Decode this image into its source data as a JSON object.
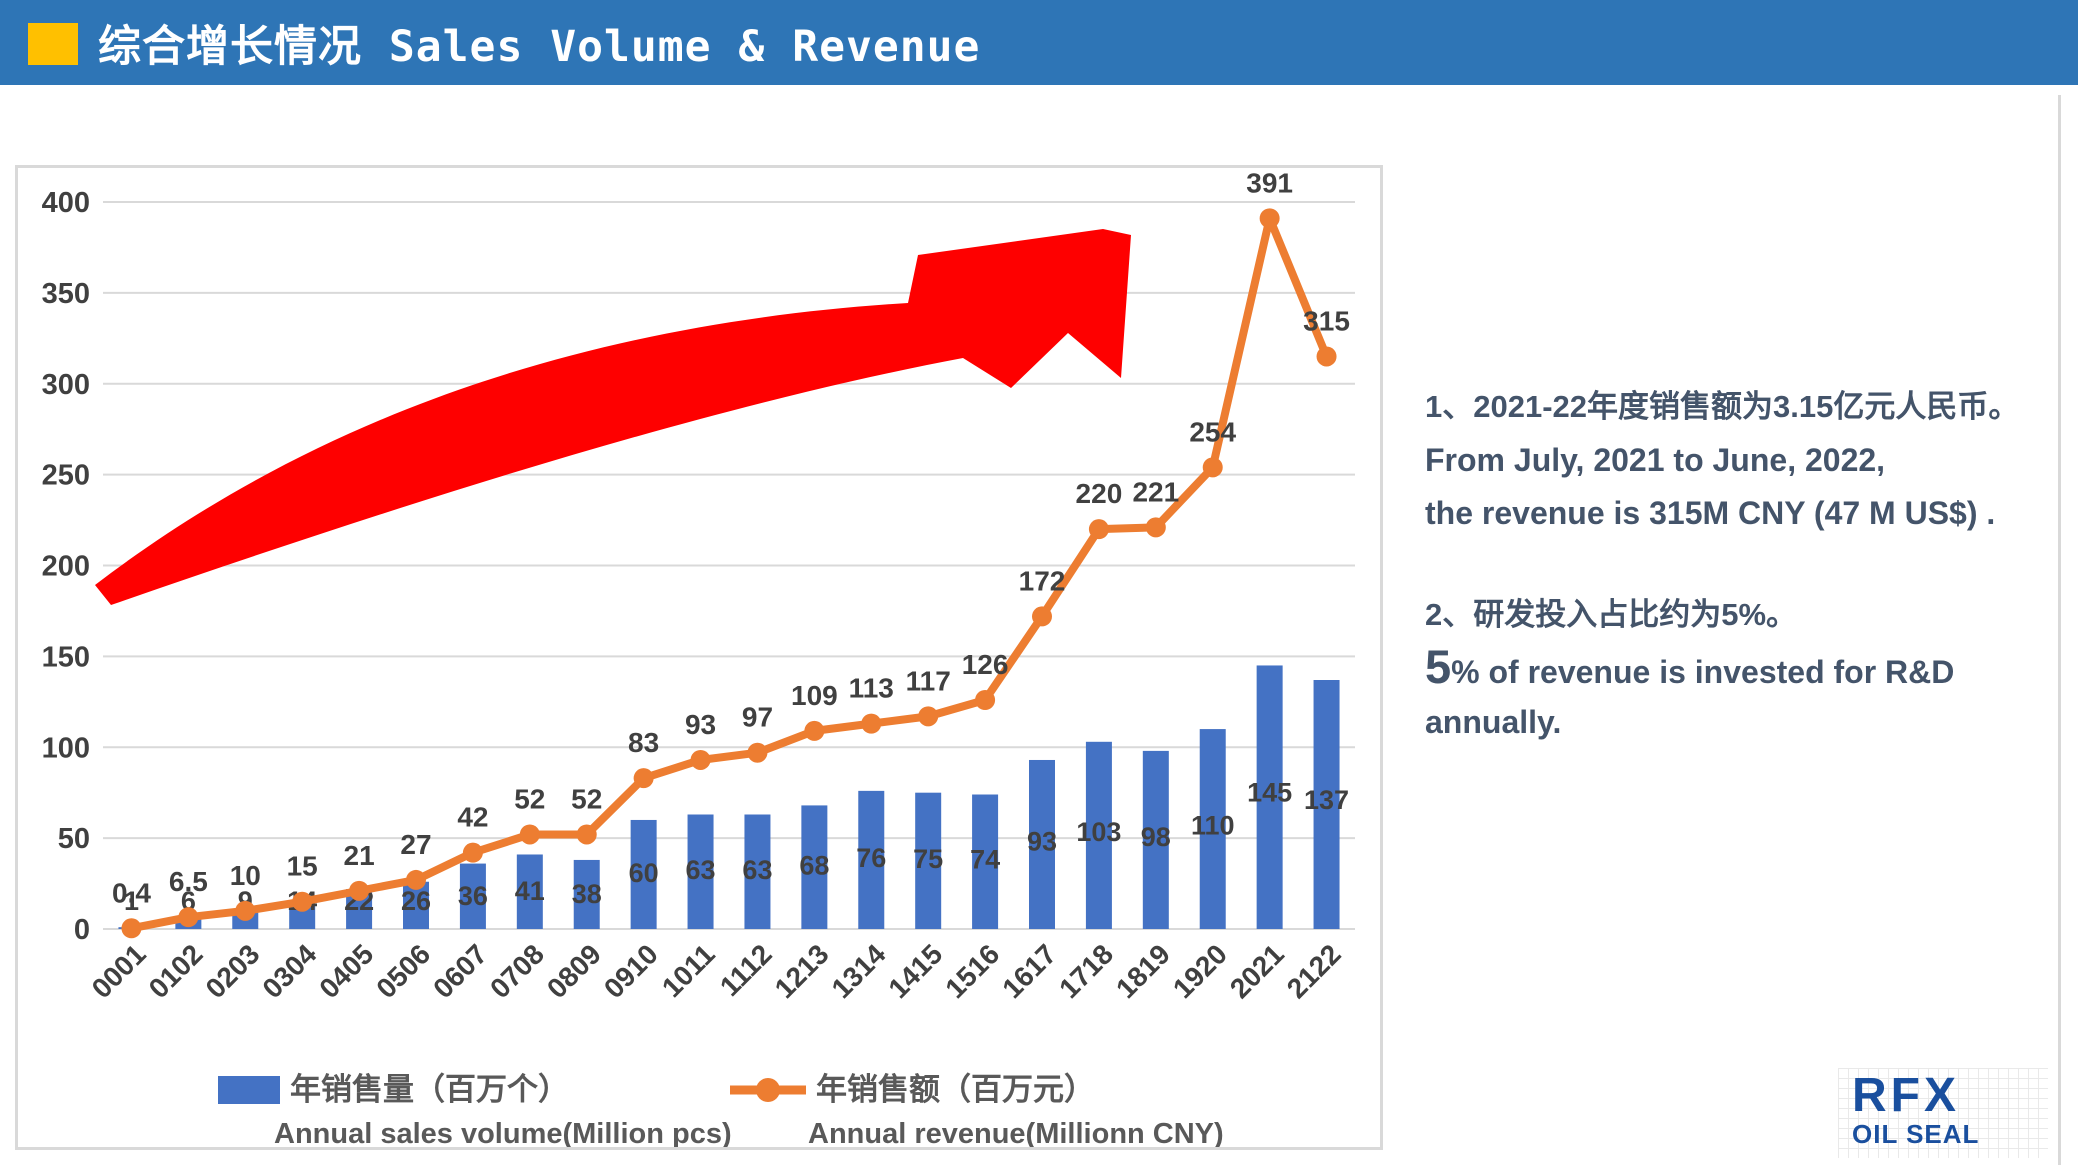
{
  "header": {
    "title": "综合增长情况 Sales Volume & Revenue",
    "bg_color": "#2E75B6",
    "accent_color": "#FFC000"
  },
  "chart_data": {
    "type": "bar+line",
    "title": "",
    "categories": [
      "0001",
      "0102",
      "0203",
      "0304",
      "0405",
      "0506",
      "0607",
      "0708",
      "0809",
      "0910",
      "1011",
      "1112",
      "1213",
      "1314",
      "1415",
      "1516",
      "1617",
      "1718",
      "1819",
      "1920",
      "2021",
      "2122"
    ],
    "series": [
      {
        "name": "年销售量（百万个）",
        "name_en": "Annual sales volume(Million pcs)",
        "type": "bar",
        "color": "#4472C4",
        "values": [
          1,
          6,
          9,
          14,
          22,
          26,
          36,
          41,
          38,
          60,
          63,
          63,
          68,
          76,
          75,
          74,
          93,
          103,
          98,
          110,
          145,
          137
        ]
      },
      {
        "name": "年销售额（百万元）",
        "name_en": "Annual revenue(Millionn CNY)",
        "type": "line",
        "color": "#ED7D31",
        "values": [
          0.4,
          6.5,
          10,
          15,
          21,
          27,
          42,
          52,
          52,
          83,
          93,
          97,
          109,
          113,
          117,
          126,
          172,
          220,
          221,
          254,
          391,
          315
        ]
      }
    ],
    "y_ticks": [
      0,
      50,
      100,
      150,
      200,
      250,
      300,
      350,
      400
    ],
    "ylim": [
      0,
      400
    ],
    "grid": true,
    "legend_position": "bottom",
    "gridline_color": "#D9D9D9",
    "label_color": "#404040",
    "legend_text_color": "#595959",
    "arrow_color": "#FE0000"
  },
  "notes": {
    "item1_zh": "1、2021-22年度销售额为3.15亿元人民币。",
    "item1_en_line1": "From July, 2021 to June, 2022,",
    "item1_en_line2": "the revenue is 315M CNY (47 M US$) .",
    "item2_zh": "2、研发投入占比约为5%。",
    "item2_en_big": "5",
    "item2_en_rest": "% of revenue is invested for R&D annually."
  },
  "logo": {
    "line1": "RFX",
    "line2": "OIL SEAL"
  }
}
